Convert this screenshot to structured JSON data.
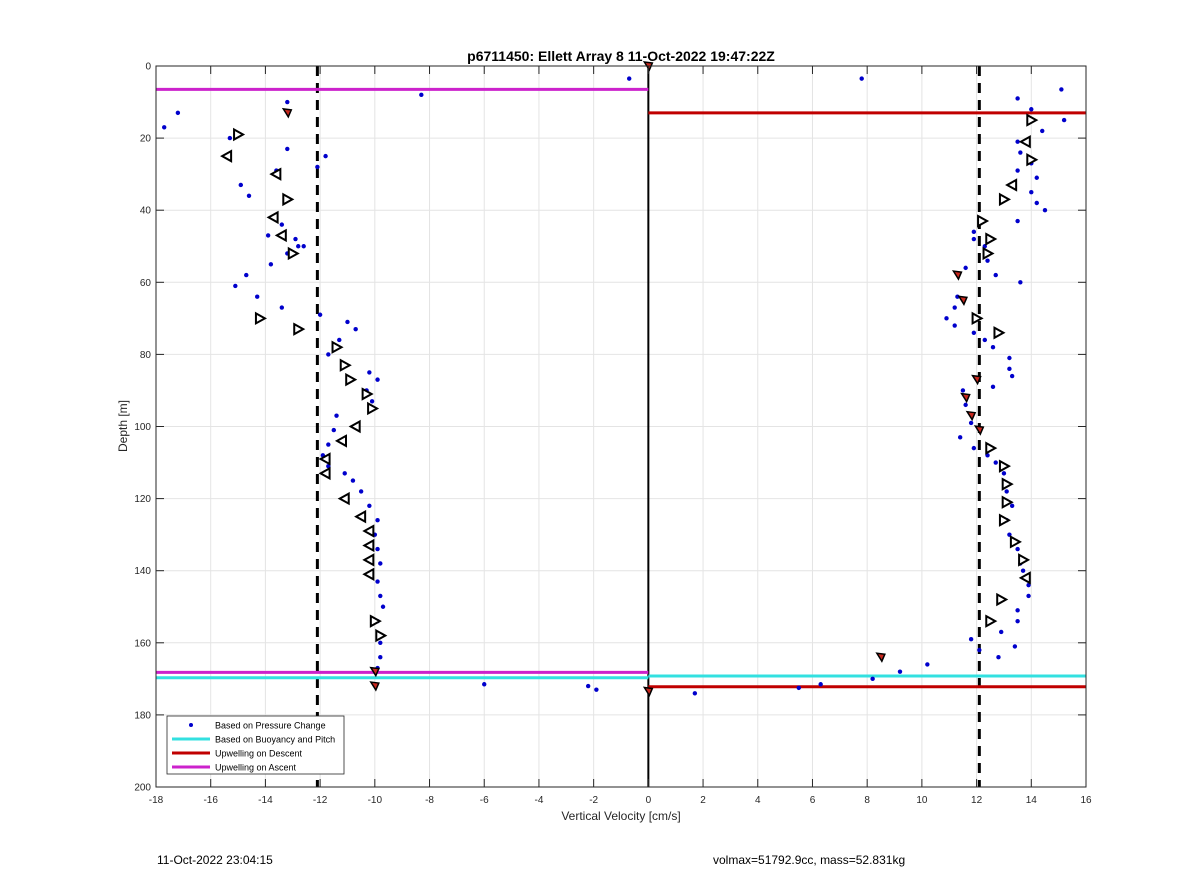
{
  "footer": {
    "timestamp": "11-Oct-2022 23:04:15",
    "float_info": "volmax=51792.9cc, mass=52.831kg"
  },
  "chart_data": {
    "type": "scatter",
    "title": "p6711450: Ellett Array 8 11-Oct-2022 19:47:22Z",
    "xlabel": "Vertical Velocity [cm/s]",
    "ylabel": "Depth [m]",
    "xlim": [
      -18,
      16
    ],
    "ylim": [
      0,
      200
    ],
    "y_reversed": true,
    "x_ticks": [
      -18,
      -16,
      -14,
      -12,
      -10,
      -8,
      -6,
      -4,
      -2,
      0,
      2,
      4,
      6,
      8,
      10,
      12,
      14,
      16
    ],
    "y_ticks": [
      0,
      20,
      40,
      60,
      80,
      100,
      120,
      140,
      160,
      180,
      200
    ],
    "grid": true,
    "legend_position": "bottom-left",
    "colors": {
      "pressure": "#0000cc",
      "buoyancy": "#33e0e0",
      "descent": "#c00000",
      "ascent": "#cc22cc",
      "marker_fill_red": "#c8281e",
      "axis": "#262626",
      "grid": "#e4e4e4"
    },
    "legend": [
      {
        "label": "Based on Pressure Change",
        "style": "dot",
        "color": "#0000cc"
      },
      {
        "label": "Based on Buoyancy and Pitch",
        "style": "line",
        "color": "#33e0e0"
      },
      {
        "label": "Upwelling on Descent",
        "style": "line",
        "color": "#c00000"
      },
      {
        "label": "Upwelling on Ascent",
        "style": "line",
        "color": "#cc22cc"
      }
    ],
    "reference_lines": [
      {
        "type": "vertical",
        "x": -12.1,
        "style": "dashed"
      },
      {
        "type": "vertical",
        "x": 12.1,
        "style": "dashed"
      },
      {
        "type": "vertical",
        "x": 0,
        "style": "solid"
      }
    ],
    "horizontal_lines": [
      {
        "name": "Upwelling on Ascent",
        "y": 6.5,
        "x_from": -18,
        "x_to": 0,
        "color": "#cc22cc"
      },
      {
        "name": "Upwelling on Descent",
        "y": 13,
        "x_from": 0,
        "x_to": 16,
        "color": "#c00000"
      },
      {
        "name": "Upwelling on Ascent",
        "y": 168.2,
        "x_from": -18,
        "x_to": 0,
        "color": "#cc22cc"
      },
      {
        "name": "Based on Buoyancy and Pitch",
        "y": 169.7,
        "x_from": -18,
        "x_to": 0,
        "color": "#33e0e0"
      },
      {
        "name": "Based on Buoyancy and Pitch",
        "y": 169.2,
        "x_from": 0,
        "x_to": 16,
        "color": "#33e0e0"
      },
      {
        "name": "Upwelling on Descent",
        "y": 172.2,
        "x_from": 0,
        "x_to": 16,
        "color": "#c00000"
      }
    ],
    "pressure_points": [
      [
        -17.2,
        13
      ],
      [
        -17.7,
        17
      ],
      [
        -15.3,
        20
      ],
      [
        -15.1,
        61
      ],
      [
        -14.7,
        58
      ],
      [
        -14.3,
        64
      ],
      [
        -14.9,
        33
      ],
      [
        -14.6,
        36
      ],
      [
        -13.9,
        47
      ],
      [
        -13.8,
        55
      ],
      [
        -13.6,
        29
      ],
      [
        -13.4,
        44
      ],
      [
        -13.2,
        52
      ],
      [
        -13.4,
        67
      ],
      [
        -13.2,
        10
      ],
      [
        -13.2,
        23
      ],
      [
        -12.9,
        48
      ],
      [
        -12.8,
        50
      ],
      [
        -12.6,
        50
      ],
      [
        -12.1,
        28
      ],
      [
        -11.8,
        25
      ],
      [
        -12.0,
        69
      ],
      [
        -11.0,
        71
      ],
      [
        -10.7,
        73
      ],
      [
        -11.3,
        76
      ],
      [
        -11.7,
        80
      ],
      [
        -10.2,
        85
      ],
      [
        -9.9,
        87
      ],
      [
        -10.3,
        90
      ],
      [
        -10.1,
        93
      ],
      [
        -11.4,
        97
      ],
      [
        -11.5,
        101
      ],
      [
        -11.7,
        105
      ],
      [
        -11.9,
        108
      ],
      [
        -11.7,
        111
      ],
      [
        -11.1,
        113
      ],
      [
        -10.8,
        115
      ],
      [
        -10.5,
        118
      ],
      [
        -10.2,
        122
      ],
      [
        -9.9,
        126
      ],
      [
        -10.0,
        130
      ],
      [
        -9.9,
        134
      ],
      [
        -9.8,
        138
      ],
      [
        -9.9,
        143
      ],
      [
        -9.8,
        147
      ],
      [
        -9.7,
        150
      ],
      [
        -9.9,
        154
      ],
      [
        -9.8,
        160
      ],
      [
        -9.8,
        164
      ],
      [
        -9.9,
        167
      ],
      [
        -8.3,
        8
      ],
      [
        -0.7,
        3.5
      ],
      [
        -6.0,
        171.5
      ],
      [
        -2.2,
        172
      ],
      [
        -1.9,
        173
      ],
      [
        1.7,
        174
      ],
      [
        5.5,
        172.5
      ],
      [
        6.3,
        171.5
      ],
      [
        8.2,
        170
      ],
      [
        9.2,
        168
      ],
      [
        10.2,
        166
      ],
      [
        7.8,
        3.5
      ],
      [
        13.5,
        9
      ],
      [
        14.0,
        12
      ],
      [
        15.1,
        6.5
      ],
      [
        15.2,
        15
      ],
      [
        14.4,
        18
      ],
      [
        13.5,
        21
      ],
      [
        13.6,
        24
      ],
      [
        13.5,
        29
      ],
      [
        14.0,
        27
      ],
      [
        14.2,
        31
      ],
      [
        14.0,
        35
      ],
      [
        14.2,
        38
      ],
      [
        14.5,
        40
      ],
      [
        13.5,
        43
      ],
      [
        11.9,
        46
      ],
      [
        11.9,
        48
      ],
      [
        12.3,
        50
      ],
      [
        12.4,
        54
      ],
      [
        12.7,
        58
      ],
      [
        13.6,
        60
      ],
      [
        11.6,
        56
      ],
      [
        11.3,
        64
      ],
      [
        11.2,
        67
      ],
      [
        10.9,
        70
      ],
      [
        11.2,
        72
      ],
      [
        11.9,
        74
      ],
      [
        12.3,
        76
      ],
      [
        12.6,
        78
      ],
      [
        13.2,
        81
      ],
      [
        13.2,
        84
      ],
      [
        13.3,
        86
      ],
      [
        12.6,
        89
      ],
      [
        11.5,
        90
      ],
      [
        11.6,
        94
      ],
      [
        11.8,
        99
      ],
      [
        11.4,
        103
      ],
      [
        11.9,
        106
      ],
      [
        12.4,
        108
      ],
      [
        12.7,
        110
      ],
      [
        13.0,
        113
      ],
      [
        13.1,
        118
      ],
      [
        13.3,
        122
      ],
      [
        13.1,
        126
      ],
      [
        13.2,
        130
      ],
      [
        13.5,
        134
      ],
      [
        13.6,
        138
      ],
      [
        13.7,
        140
      ],
      [
        13.9,
        144
      ],
      [
        13.9,
        147
      ],
      [
        13.5,
        151
      ],
      [
        13.5,
        154
      ],
      [
        12.9,
        157
      ],
      [
        11.8,
        159
      ],
      [
        12.1,
        162
      ],
      [
        12.8,
        164
      ],
      [
        13.4,
        161
      ]
    ],
    "right_triangles": [
      [
        -15.0,
        19
      ],
      [
        -13.2,
        37
      ],
      [
        -13.0,
        52
      ],
      [
        -14.2,
        70
      ],
      [
        -12.8,
        73
      ],
      [
        -11.4,
        78
      ],
      [
        -11.1,
        83
      ],
      [
        -10.9,
        87
      ],
      [
        -10.3,
        91
      ],
      [
        -10.1,
        95
      ],
      [
        -10.0,
        154
      ],
      [
        -9.8,
        158
      ],
      [
        14.0,
        15
      ],
      [
        14.0,
        26
      ],
      [
        13.0,
        37
      ],
      [
        12.2,
        43
      ],
      [
        12.5,
        48
      ],
      [
        12.4,
        52
      ],
      [
        12.0,
        70
      ],
      [
        12.8,
        74
      ],
      [
        12.5,
        106
      ],
      [
        13.0,
        111
      ],
      [
        13.1,
        116
      ],
      [
        13.1,
        121
      ],
      [
        13.0,
        126
      ],
      [
        13.4,
        132
      ],
      [
        13.7,
        137
      ],
      [
        12.9,
        148
      ],
      [
        12.5,
        154
      ]
    ],
    "left_triangles": [
      [
        -15.4,
        25
      ],
      [
        -13.6,
        30
      ],
      [
        -13.7,
        42
      ],
      [
        -13.4,
        47
      ],
      [
        -10.7,
        100
      ],
      [
        -11.2,
        104
      ],
      [
        -11.8,
        109
      ],
      [
        -11.8,
        113
      ],
      [
        -11.1,
        120
      ],
      [
        -10.5,
        125
      ],
      [
        -10.2,
        129
      ],
      [
        -10.2,
        133
      ],
      [
        -10.2,
        137
      ],
      [
        -10.2,
        141
      ],
      [
        13.8,
        21
      ],
      [
        13.3,
        33
      ],
      [
        13.8,
        142
      ]
    ],
    "red_markers": [
      [
        -13.2,
        13
      ],
      [
        0,
        0
      ],
      [
        11.3,
        58
      ],
      [
        11.5,
        65
      ],
      [
        12.0,
        87
      ],
      [
        11.6,
        92
      ],
      [
        11.8,
        97
      ],
      [
        12.1,
        101
      ],
      [
        8.5,
        164
      ],
      [
        -10.0,
        168
      ],
      [
        -10.0,
        172
      ],
      [
        0,
        173.5
      ]
    ]
  }
}
